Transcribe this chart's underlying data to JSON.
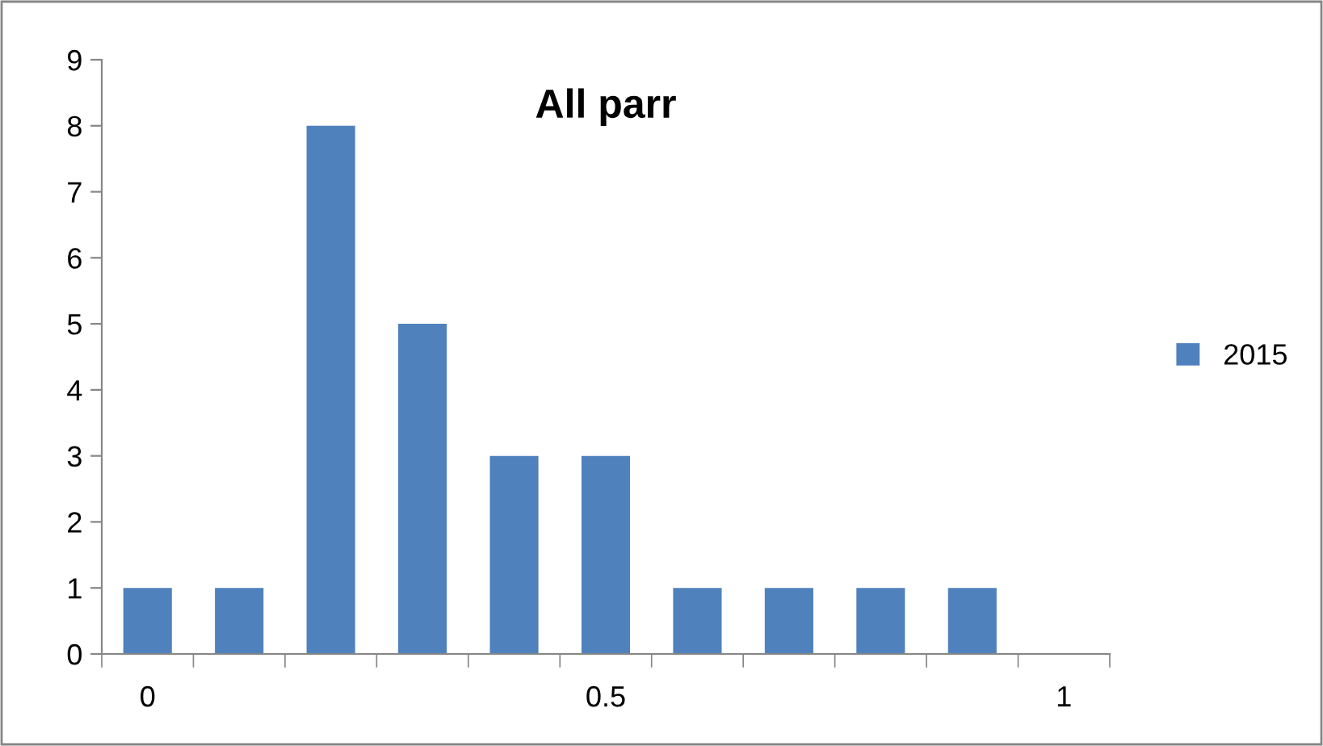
{
  "chart_data": {
    "type": "bar",
    "title": "All parr",
    "categories": [
      "0",
      null,
      null,
      null,
      null,
      "0.5",
      null,
      null,
      null,
      null,
      "1"
    ],
    "series": [
      {
        "name": "2015",
        "color": "#4f81bd",
        "values": [
          1,
          1,
          8,
          5,
          3,
          3,
          1,
          1,
          1,
          1,
          0
        ]
      }
    ],
    "ylim": [
      0,
      9
    ],
    "yticks": [
      0,
      1,
      2,
      3,
      4,
      5,
      6,
      7,
      8,
      9
    ],
    "grid": false,
    "legend": "right"
  }
}
